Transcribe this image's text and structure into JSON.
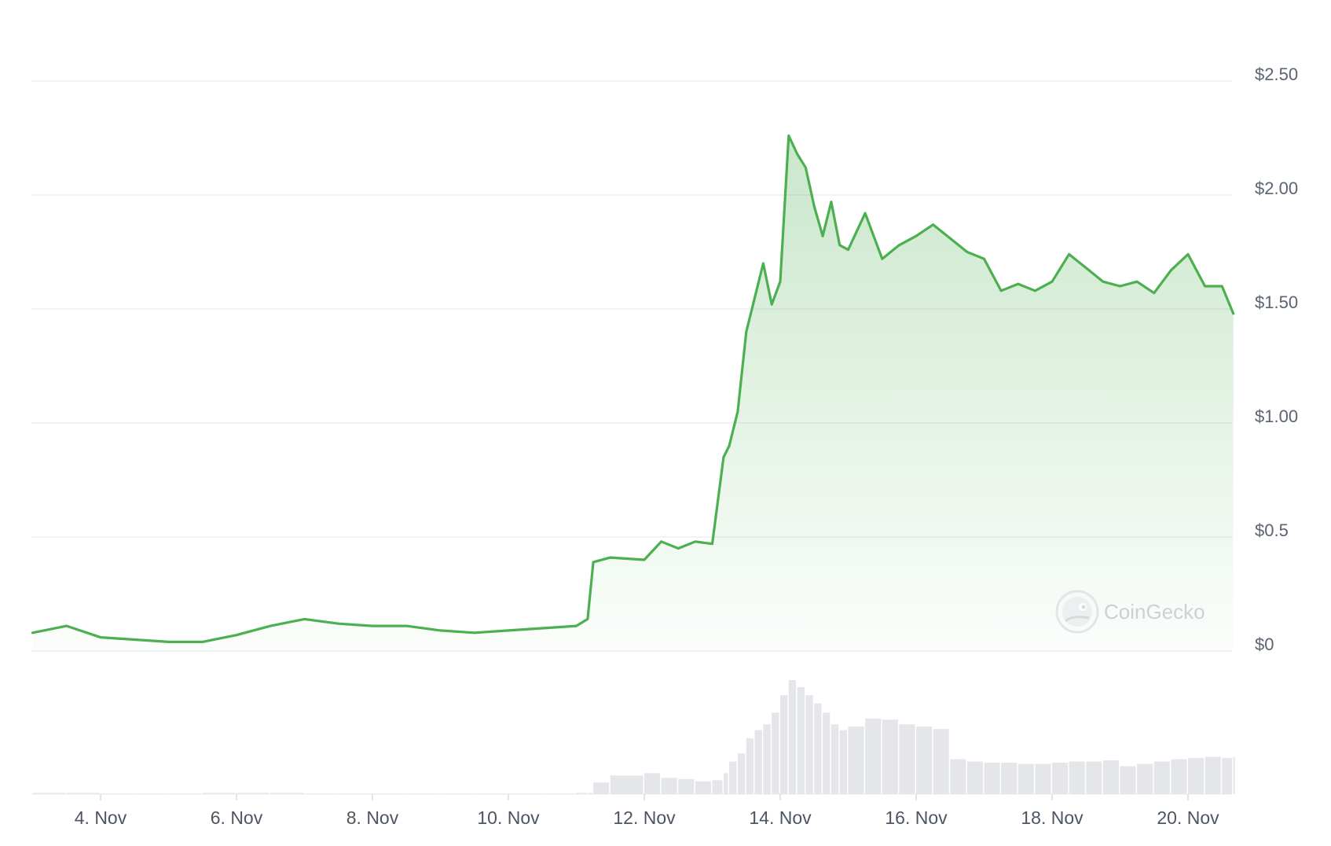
{
  "chart_data": {
    "type": "area",
    "x": [
      "3 Nov 00:00",
      "3 Nov 12:00",
      "4 Nov 00:00",
      "4 Nov 12:00",
      "5 Nov 00:00",
      "5 Nov 12:00",
      "6 Nov 00:00",
      "6 Nov 12:00",
      "7 Nov 00:00",
      "7 Nov 12:00",
      "8 Nov 00:00",
      "8 Nov 12:00",
      "9 Nov 00:00",
      "9 Nov 12:00",
      "10 Nov 00:00",
      "10 Nov 12:00",
      "11 Nov 00:00",
      "11 Nov 04:00",
      "11 Nov 06:00",
      "11 Nov 12:00",
      "12 Nov 00:00",
      "12 Nov 06:00",
      "12 Nov 12:00",
      "12 Nov 18:00",
      "13 Nov 00:00",
      "13 Nov 04:00",
      "13 Nov 06:00",
      "13 Nov 09:00",
      "13 Nov 12:00",
      "13 Nov 15:00",
      "13 Nov 18:00",
      "13 Nov 21:00",
      "14 Nov 00:00",
      "14 Nov 03:00",
      "14 Nov 06:00",
      "14 Nov 09:00",
      "14 Nov 12:00",
      "14 Nov 15:00",
      "14 Nov 18:00",
      "14 Nov 21:00",
      "15 Nov 00:00",
      "15 Nov 06:00",
      "15 Nov 12:00",
      "15 Nov 18:00",
      "16 Nov 00:00",
      "16 Nov 06:00",
      "16 Nov 12:00",
      "16 Nov 18:00",
      "17 Nov 00:00",
      "17 Nov 06:00",
      "17 Nov 12:00",
      "17 Nov 18:00",
      "18 Nov 00:00",
      "18 Nov 06:00",
      "18 Nov 12:00",
      "18 Nov 18:00",
      "19 Nov 00:00",
      "19 Nov 06:00",
      "19 Nov 12:00",
      "19 Nov 18:00",
      "20 Nov 00:00",
      "20 Nov 06:00",
      "20 Nov 12:00",
      "20 Nov 16:00"
    ],
    "series": [
      {
        "values": [
          0.08,
          0.11,
          0.06,
          0.05,
          0.04,
          0.04,
          0.07,
          0.11,
          0.14,
          0.12,
          0.11,
          0.11,
          0.09,
          0.08,
          0.09,
          0.1,
          0.11,
          0.14,
          0.39,
          0.41,
          0.4,
          0.48,
          0.45,
          0.48,
          0.47,
          0.85,
          0.9,
          1.05,
          1.4,
          1.55,
          1.7,
          1.52,
          1.62,
          2.26,
          2.18,
          2.12,
          1.95,
          1.82,
          1.97,
          1.78,
          1.76,
          1.92,
          1.72,
          1.78,
          1.82,
          1.87,
          1.81,
          1.75,
          1.72,
          1.58,
          1.61,
          1.58,
          1.62,
          1.74,
          1.68,
          1.62,
          1.6,
          1.62,
          1.57,
          1.67,
          1.74,
          1.6,
          1.6,
          1.48
        ],
        "color": "#4caf50"
      }
    ],
    "volume": [
      1,
      1,
      0,
      0,
      0,
      1,
      1,
      1,
      0,
      0,
      0,
      0,
      0,
      0,
      0,
      0,
      1,
      1,
      10,
      16,
      18,
      14,
      13,
      11,
      12,
      18,
      28,
      35,
      48,
      55,
      60,
      70,
      85,
      98,
      92,
      85,
      78,
      70,
      60,
      55,
      58,
      65,
      64,
      60,
      58,
      56,
      30,
      28,
      27,
      27,
      26,
      26,
      27,
      28,
      28,
      29,
      24,
      26,
      28,
      30,
      31,
      32,
      31,
      32
    ],
    "y_ticks": [
      "$0",
      "$0.5",
      "$1.00",
      "$1.50",
      "$2.00",
      "$2.50"
    ],
    "y_tick_values": [
      0,
      0.5,
      1.0,
      1.5,
      2.0,
      2.5
    ],
    "x_ticks": [
      "4. Nov",
      "6. Nov",
      "8. Nov",
      "10. Nov",
      "12. Nov",
      "14. Nov",
      "16. Nov",
      "18. Nov",
      "20. Nov"
    ],
    "ylim": [
      0,
      2.5
    ],
    "grid": true,
    "line_color": "#4caf50",
    "fill_color": "#4caf50",
    "grid_color": "#e8eaed",
    "volume_color": "#e4e6ea"
  },
  "watermark": {
    "text": "CoinGecko",
    "icon": "coingecko-gecko-icon"
  }
}
